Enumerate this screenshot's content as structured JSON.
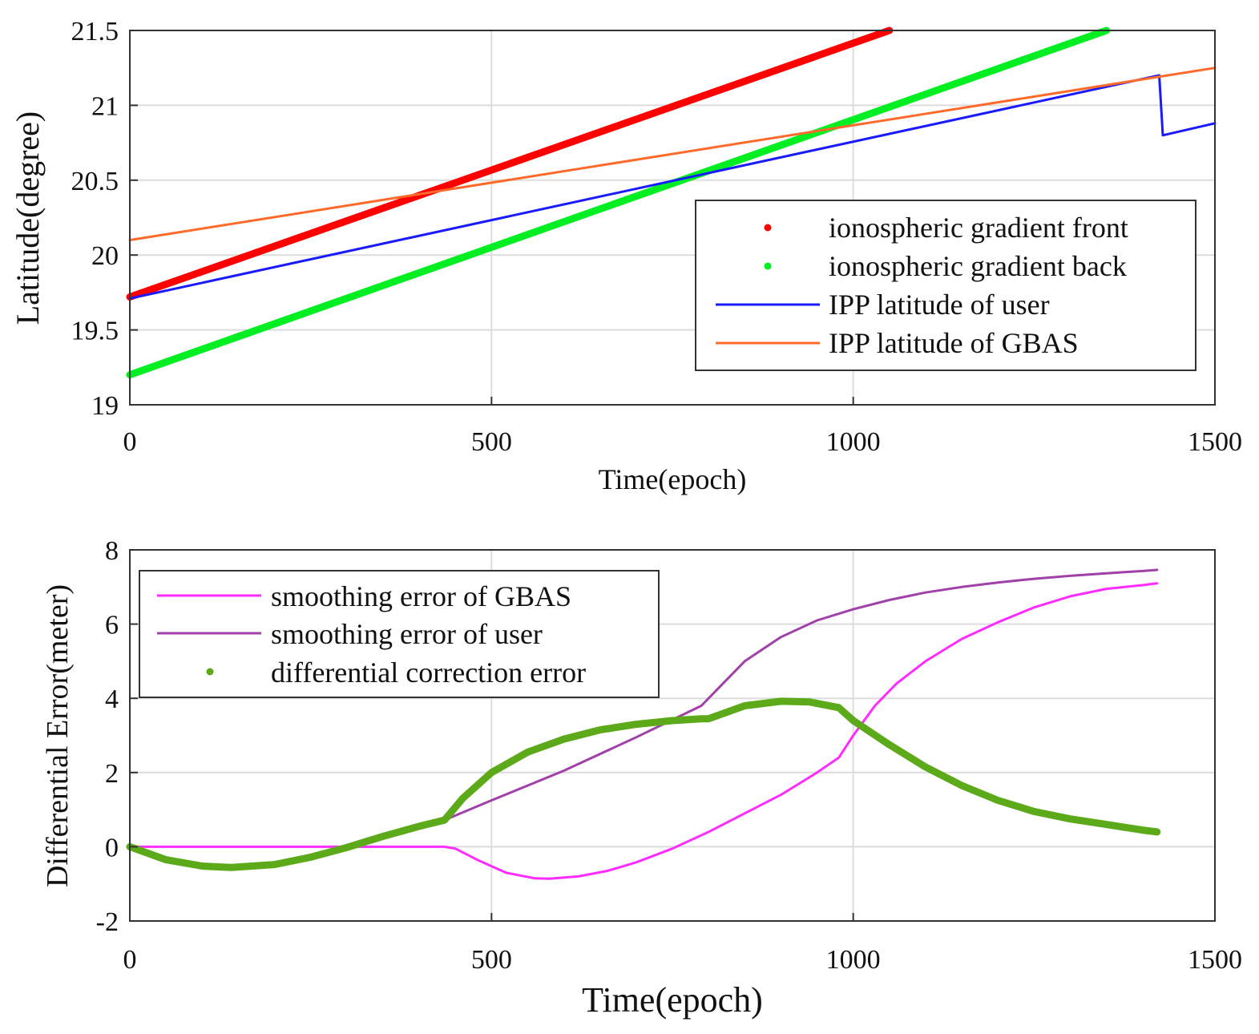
{
  "chart_data": [
    {
      "type": "line",
      "title": "",
      "xlabel": "Time(epoch)",
      "ylabel": "Latitude(degree)",
      "xlim": [
        0,
        1500
      ],
      "ylim": [
        19,
        21.5
      ],
      "xticks": [
        0,
        500,
        1000,
        1500
      ],
      "xtick_labels": [
        "0",
        "500",
        "1000",
        "1500"
      ],
      "yticks": [
        19,
        19.5,
        20,
        20.5,
        21,
        21.5
      ],
      "ytick_labels": [
        "19",
        "19.5",
        "20",
        "20.5",
        "21",
        "21.5"
      ],
      "grid": true,
      "legend_position": "lower-right",
      "series": [
        {
          "name": "ionospheric gradient front",
          "style": "dots",
          "color": "#ff0000",
          "x": [
            0,
            1050
          ],
          "y": [
            19.72,
            21.5
          ]
        },
        {
          "name": "ionospheric gradient back",
          "style": "dots",
          "color": "#00ee22",
          "x": [
            0,
            1350
          ],
          "y": [
            19.2,
            21.5
          ]
        },
        {
          "name": "IPP latitude of user",
          "style": "line",
          "color": "#1a1aff",
          "x": [
            0,
            1423,
            1423,
            1428,
            1500
          ],
          "y": [
            19.71,
            21.2,
            21.2,
            20.8,
            20.88
          ]
        },
        {
          "name": "IPP latitude of GBAS",
          "style": "line",
          "color": "#ff6a2a",
          "x": [
            0,
            1500
          ],
          "y": [
            20.1,
            21.25
          ]
        }
      ]
    },
    {
      "type": "line",
      "title": "",
      "xlabel": "Time(epoch)",
      "ylabel": "Differential Error(meter)",
      "xlim": [
        0,
        1500
      ],
      "ylim": [
        -2,
        8
      ],
      "xticks": [
        0,
        500,
        1000,
        1500
      ],
      "xtick_labels": [
        "0",
        "500",
        "1000",
        "1500"
      ],
      "yticks": [
        -2,
        0,
        2,
        4,
        6,
        8
      ],
      "ytick_labels": [
        "-2",
        "0",
        "2",
        "4",
        "6",
        "8"
      ],
      "grid": true,
      "legend_position": "top-left",
      "series": [
        {
          "name": "smoothing error of GBAS",
          "style": "line",
          "color": "#ff2cff",
          "x": [
            0,
            100,
            200,
            300,
            420,
            435,
            450,
            480,
            520,
            560,
            580,
            620,
            660,
            700,
            750,
            800,
            850,
            900,
            950,
            980,
            1000,
            1030,
            1060,
            1100,
            1150,
            1200,
            1250,
            1300,
            1350,
            1400,
            1420
          ],
          "y": [
            0,
            0,
            0,
            0,
            0,
            0,
            -0.05,
            -0.35,
            -0.7,
            -0.85,
            -0.86,
            -0.8,
            -0.65,
            -0.42,
            -0.05,
            0.4,
            0.9,
            1.4,
            2.0,
            2.4,
            3.0,
            3.8,
            4.4,
            5.0,
            5.6,
            6.05,
            6.45,
            6.75,
            6.95,
            7.05,
            7.1
          ]
        },
        {
          "name": "smoothing error of user",
          "style": "line",
          "color": "#a040a8",
          "x": [
            0,
            50,
            100,
            140,
            200,
            250,
            300,
            350,
            400,
            435,
            500,
            600,
            700,
            790,
            820,
            850,
            900,
            950,
            1000,
            1050,
            1100,
            1150,
            1200,
            1250,
            1300,
            1350,
            1400,
            1420
          ],
          "y": [
            0,
            -0.35,
            -0.52,
            -0.56,
            -0.48,
            -0.28,
            -0.02,
            0.28,
            0.55,
            0.72,
            1.25,
            2.05,
            2.95,
            3.8,
            4.4,
            5.0,
            5.65,
            6.1,
            6.4,
            6.65,
            6.85,
            7.0,
            7.12,
            7.22,
            7.3,
            7.37,
            7.43,
            7.46
          ]
        },
        {
          "name": "differential correction error",
          "style": "dots",
          "color": "#5caa1a",
          "x": [
            0,
            50,
            100,
            140,
            200,
            250,
            300,
            350,
            400,
            435,
            460,
            500,
            550,
            600,
            650,
            700,
            750,
            790,
            800,
            850,
            900,
            940,
            980,
            1000,
            1050,
            1100,
            1150,
            1200,
            1250,
            1300,
            1350,
            1400,
            1420
          ],
          "y": [
            0,
            -0.35,
            -0.52,
            -0.56,
            -0.48,
            -0.28,
            -0.02,
            0.28,
            0.55,
            0.72,
            1.3,
            2.0,
            2.55,
            2.9,
            3.15,
            3.3,
            3.4,
            3.45,
            3.45,
            3.8,
            3.92,
            3.9,
            3.75,
            3.4,
            2.75,
            2.15,
            1.65,
            1.25,
            0.95,
            0.75,
            0.6,
            0.45,
            0.4
          ]
        }
      ]
    }
  ]
}
